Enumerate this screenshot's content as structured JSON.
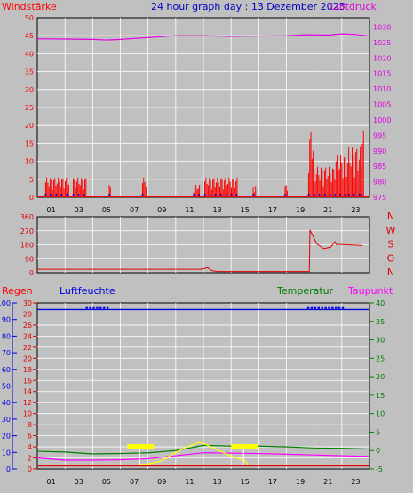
{
  "title": "24 hour graph day : 13 Dezember 2025",
  "x_ticks": [
    "01",
    "03",
    "05",
    "07",
    "09",
    "11",
    "13",
    "15",
    "17",
    "19",
    "21",
    "23"
  ],
  "colors": {
    "background": "#c0c0c0",
    "grid": "#ffffff",
    "wind": "#ff0000",
    "pressure": "#e000e0",
    "direction": "#e00000",
    "rain": "#e00000",
    "humidity": "#0000e0",
    "temperature": "#008000",
    "dewpoint": "#ff00ff",
    "yellow": "#ffff00",
    "frame": "#000000"
  },
  "chart_data": [
    {
      "type": "line",
      "panel": "wind-pressure",
      "labels": {
        "left": "Windstärke",
        "right": "Luftdruck"
      },
      "left_axis": {
        "ticks": [
          "0",
          "5",
          "10",
          "15",
          "20",
          "25",
          "30",
          "35",
          "40",
          "45",
          "50"
        ],
        "ylim": [
          0,
          50
        ]
      },
      "right_axis": {
        "ticks": [
          "975",
          "980",
          "985",
          "990",
          "995",
          "1000",
          "1005",
          "1010",
          "1015",
          "1020",
          "1025",
          "1030"
        ],
        "ylim": [
          975,
          1033
        ]
      },
      "series": [
        {
          "key": "pressure",
          "x": [
            0,
            2,
            4,
            5,
            6,
            8,
            10,
            12,
            14,
            16,
            18,
            19.5,
            21,
            22,
            23,
            24
          ],
          "y": [
            1026.2,
            1026.1,
            1026.0,
            1025.8,
            1026.0,
            1026.6,
            1027.2,
            1027.2,
            1027.0,
            1027.1,
            1027.2,
            1027.5,
            1027.4,
            1027.8,
            1027.6,
            1027.1
          ]
        },
        {
          "key": "wind_bursts",
          "bursts": [
            {
              "x0": 0.6,
              "x1": 2.3,
              "h": 5.5
            },
            {
              "x0": 2.6,
              "x1": 3.6,
              "h": 5.5
            },
            {
              "x0": 5.2,
              "x1": 5.3,
              "h": 3.5
            },
            {
              "x0": 7.6,
              "x1": 7.9,
              "h": 5.5
            },
            {
              "x0": 11.3,
              "x1": 11.8,
              "h": 3.5
            },
            {
              "x0": 12.1,
              "x1": 14.5,
              "h": 5.5
            },
            {
              "x0": 15.6,
              "x1": 15.8,
              "h": 3.5
            },
            {
              "x0": 17.9,
              "x1": 18.1,
              "h": 3.5
            },
            {
              "x0": 19.6,
              "x1": 20.0,
              "h": 18.5
            },
            {
              "x0": 20.0,
              "x1": 21.5,
              "h": 8.5
            },
            {
              "x0": 21.5,
              "x1": 22.5,
              "h": 12.0
            },
            {
              "x0": 22.5,
              "x1": 23.4,
              "h": 14.0
            },
            {
              "x0": 23.4,
              "x1": 23.6,
              "h": 18.5
            }
          ]
        }
      ]
    },
    {
      "type": "line",
      "panel": "wind-direction",
      "left_axis": {
        "ticks": [
          "0",
          "90",
          "180",
          "270",
          "360"
        ],
        "ylim": [
          0,
          360
        ]
      },
      "right_axis": {
        "ticks": [
          "N",
          "W",
          "S",
          "O",
          "N"
        ]
      },
      "series": [
        {
          "key": "direction",
          "x": [
            0,
            11.8,
            12.1,
            12.3,
            12.6,
            13,
            19.65,
            19.7,
            20.2,
            20.7,
            21.2,
            21.5,
            21.6,
            22,
            23.5
          ],
          "y": [
            22,
            22,
            28,
            32,
            14,
            8,
            8,
            275,
            185,
            155,
            165,
            200,
            182,
            182,
            175
          ]
        }
      ]
    },
    {
      "type": "line",
      "panel": "rain-humidity-temperature",
      "labels": {
        "rain": "Regen",
        "humidity": "Luftfeuchte",
        "temperature": "Temperatur",
        "dewpoint": "Taupunkt"
      },
      "humidity_axis": {
        "ticks": [
          "0",
          "10",
          "20",
          "30",
          "40",
          "50",
          "60",
          "70",
          "80",
          "90",
          "100"
        ],
        "ylim": [
          0,
          100
        ]
      },
      "rain_axis": {
        "ticks": [
          "0",
          "2",
          "4",
          "6",
          "8",
          "10",
          "12",
          "14",
          "16",
          "18",
          "20",
          "22",
          "24",
          "26",
          "28",
          "30"
        ],
        "ylim": [
          0,
          30
        ]
      },
      "temperature_axis": {
        "ticks": [
          "-5",
          "0",
          "5",
          "10",
          "15",
          "20",
          "25",
          "30",
          "35",
          "40"
        ],
        "ylim": [
          -5,
          40
        ]
      },
      "series": [
        {
          "key": "humidity",
          "x": [
            0,
            3,
            3.01,
            24
          ],
          "y": [
            96,
            96,
            96,
            96
          ]
        },
        {
          "key": "temperature",
          "x": [
            0,
            2,
            4,
            6,
            8,
            10,
            12,
            14,
            16,
            18,
            20,
            22,
            24
          ],
          "y": [
            -0.2,
            -0.4,
            -0.9,
            -0.8,
            -0.6,
            0.0,
            1.4,
            1.2,
            1.2,
            1.0,
            0.7,
            0.6,
            0.4
          ]
        },
        {
          "key": "dewpoint",
          "x": [
            0,
            2,
            4,
            6,
            8,
            10,
            12,
            14,
            16,
            18,
            20,
            22,
            24
          ],
          "y": [
            -2.0,
            -2.6,
            -2.6,
            -2.5,
            -2.2,
            -1.4,
            -0.6,
            -0.7,
            -0.8,
            -1.0,
            -1.2,
            -1.4,
            -1.6
          ]
        },
        {
          "key": "solar",
          "x": [
            6.9,
            7.5,
            8,
            9,
            10,
            11,
            11.7,
            12.2,
            13,
            14,
            15,
            15.3
          ],
          "y": [
            0.6,
            0.8,
            0.9,
            1.5,
            3.0,
            4.2,
            4.8,
            4.4,
            3.5,
            2.3,
            1.5,
            0.6
          ]
        },
        {
          "key": "rain_total",
          "x": [
            0,
            24
          ],
          "y": [
            0.6,
            0.6
          ]
        }
      ]
    }
  ]
}
